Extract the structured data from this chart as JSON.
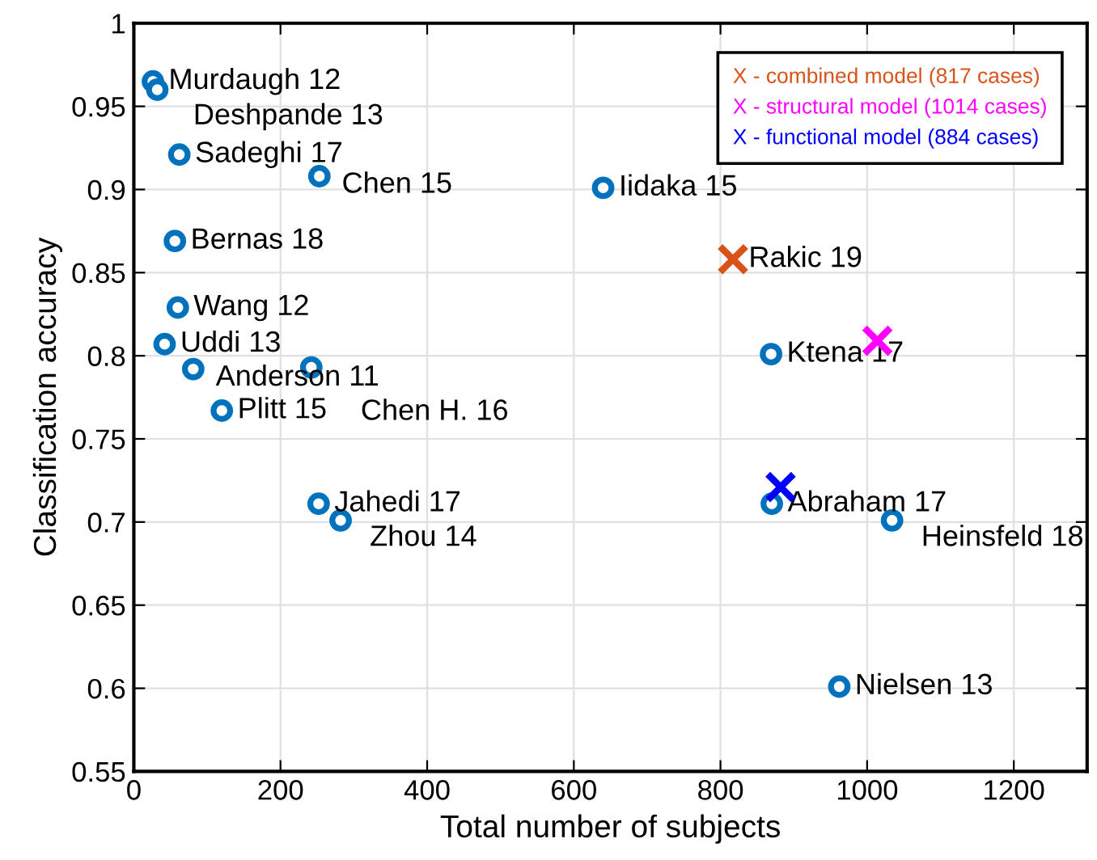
{
  "chart_data": {
    "type": "scatter",
    "xlabel": "Total number of subjects",
    "ylabel": "Classification accuracy",
    "xlim": [
      0,
      1300
    ],
    "xticks": [
      0,
      200,
      400,
      600,
      800,
      1000,
      1200
    ],
    "ylim": [
      0.55,
      1
    ],
    "yticks": [
      0.55,
      0.6,
      0.65,
      0.7,
      0.75,
      0.8,
      0.85,
      0.9,
      0.95,
      1
    ],
    "grid": true,
    "legend": "top right",
    "series": [
      {
        "color": "#0072bd",
        "marker": "circle",
        "x": [
          26,
          32,
          62,
          253,
          56,
          60,
          42,
          81,
          242,
          120,
          252,
          282,
          640,
          869,
          870,
          1034,
          962
        ],
        "values": [
          0.965,
          0.96,
          0.921,
          0.908,
          0.869,
          0.829,
          0.807,
          0.792,
          0.793,
          0.767,
          0.711,
          0.701,
          0.901,
          0.801,
          0.711,
          0.701,
          0.601
        ]
      },
      {
        "name": "X - combined model (817 cases)",
        "color": "#d95319",
        "marker": "cross",
        "x": [
          817
        ],
        "values": [
          0.858
        ]
      },
      {
        "name": "X - structural model (1014 cases)",
        "color": "#ff00ff",
        "marker": "cross",
        "x": [
          1014
        ],
        "values": [
          0.809
        ]
      },
      {
        "name": "X - functional model (884 cases)",
        "color": "#0000ff",
        "marker": "cross",
        "x": [
          882
        ],
        "values": [
          0.721
        ]
      }
    ],
    "annotations": [
      {
        "text": "Murdaugh 12",
        "x": 26,
        "y": 0.965
      },
      {
        "text": "Deshpande 13",
        "x": 32,
        "y": 0.96
      },
      {
        "text": "Sadeghi 17",
        "x": 62,
        "y": 0.921
      },
      {
        "text": "Chen 15",
        "x": 253,
        "y": 0.908
      },
      {
        "text": "Bernas 18",
        "x": 56,
        "y": 0.869
      },
      {
        "text": "Wang 12",
        "x": 60,
        "y": 0.829
      },
      {
        "text": "Uddi 13",
        "x": 42,
        "y": 0.807
      },
      {
        "text": "Anderson 11",
        "x": 81,
        "y": 0.792
      },
      {
        "text": "Chen H. 16",
        "x": 242,
        "y": 0.793
      },
      {
        "text": "Plitt 15",
        "x": 120,
        "y": 0.767
      },
      {
        "text": "Jahedi 17",
        "x": 252,
        "y": 0.711
      },
      {
        "text": "Zhou 14",
        "x": 282,
        "y": 0.701
      },
      {
        "text": "Iidaka 15",
        "x": 640,
        "y": 0.901
      },
      {
        "text": "Rakic 19",
        "x": 817,
        "y": 0.858
      },
      {
        "text": "Ktena 17",
        "x": 869,
        "y": 0.801
      },
      {
        "text": "Abraham 17",
        "x": 870,
        "y": 0.711
      },
      {
        "text": "Heinsfeld 18",
        "x": 1034,
        "y": 0.701
      },
      {
        "text": "Nielsen 13",
        "x": 962,
        "y": 0.601
      }
    ]
  }
}
